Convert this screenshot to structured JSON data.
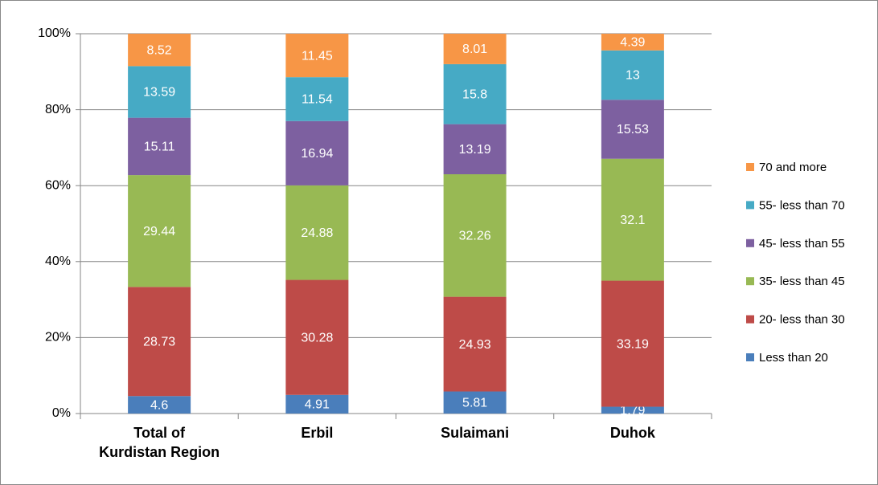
{
  "chart_data": {
    "type": "stacked_bar",
    "categories": [
      "Total of\nKurdistan Region",
      "Erbil",
      "Sulaimani",
      "Duhok"
    ],
    "series": [
      {
        "name": "Less than 20",
        "color": "#4a7ebb",
        "values": [
          4.6,
          4.91,
          5.81,
          1.79
        ]
      },
      {
        "name": "20- less than 30",
        "color": "#be4b48",
        "values": [
          28.73,
          30.28,
          24.93,
          33.19
        ]
      },
      {
        "name": "35- less than 45",
        "color": "#98b954",
        "values": [
          29.44,
          24.88,
          32.26,
          32.1
        ]
      },
      {
        "name": "45- less than 55",
        "color": "#7d60a0",
        "values": [
          15.11,
          16.94,
          13.19,
          15.53
        ]
      },
      {
        "name": "55- less than 70",
        "color": "#46aac5",
        "values": [
          13.59,
          11.54,
          15.8,
          13
        ]
      },
      {
        "name": "70 and more",
        "color": "#f79646",
        "values": [
          8.52,
          11.45,
          8.01,
          4.39
        ]
      }
    ],
    "ylim": [
      0,
      100
    ],
    "yticks": [
      {
        "value": 0,
        "label": "0%"
      },
      {
        "value": 20,
        "label": "20%"
      },
      {
        "value": 40,
        "label": "40%"
      },
      {
        "value": 60,
        "label": "60%"
      },
      {
        "value": 80,
        "label": "80%"
      },
      {
        "value": 100,
        "label": "100%"
      }
    ],
    "grid": true,
    "legend": "right"
  }
}
